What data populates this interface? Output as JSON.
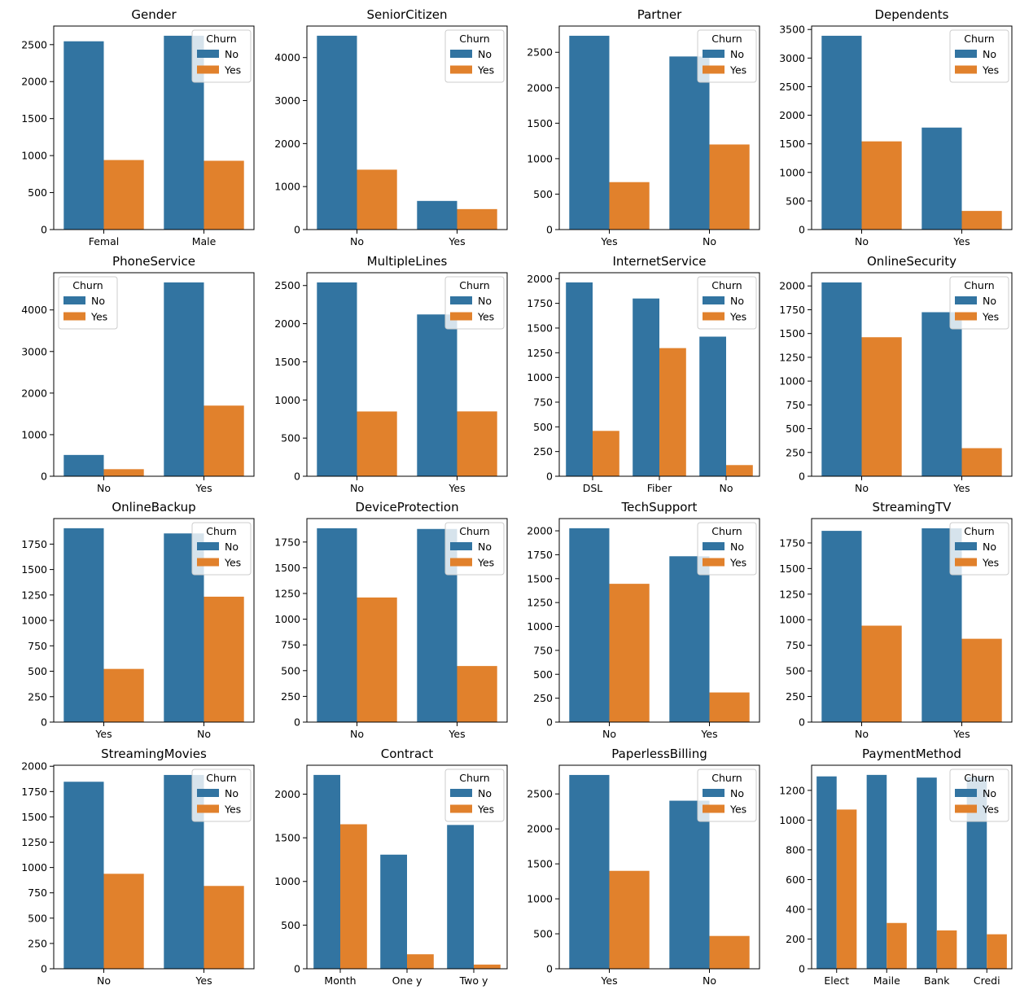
{
  "colors": {
    "No": "#3274a1",
    "Yes": "#e1812c"
  },
  "legend_title": "Churn",
  "chart_data": [
    {
      "type": "bar",
      "title": "Gender",
      "categories": [
        "Femal",
        "Male"
      ],
      "series": [
        {
          "name": "No",
          "values": [
            2545,
            2620
          ]
        },
        {
          "name": "Yes",
          "values": [
            940,
            930
          ]
        }
      ],
      "yticks": [
        0,
        500,
        1000,
        1500,
        2000,
        2500
      ],
      "ylim": [
        0,
        2751
      ],
      "legend": "upper-right"
    },
    {
      "type": "bar",
      "title": "SeniorCitizen",
      "categories": [
        "No",
        "Yes"
      ],
      "series": [
        {
          "name": "No",
          "values": [
            4508,
            666
          ]
        },
        {
          "name": "Yes",
          "values": [
            1393,
            476
          ]
        }
      ],
      "yticks": [
        0,
        1000,
        2000,
        3000,
        4000
      ],
      "ylim": [
        0,
        4733
      ],
      "legend": "upper-right"
    },
    {
      "type": "bar",
      "title": "Partner",
      "categories": [
        "Yes",
        "No"
      ],
      "series": [
        {
          "name": "No",
          "values": [
            2733,
            2441
          ]
        },
        {
          "name": "Yes",
          "values": [
            669,
            1200
          ]
        }
      ],
      "yticks": [
        0,
        500,
        1000,
        1500,
        2000,
        2500
      ],
      "ylim": [
        0,
        2870
      ],
      "legend": "upper-right"
    },
    {
      "type": "bar",
      "title": "Dependents",
      "categories": [
        "No",
        "Yes"
      ],
      "series": [
        {
          "name": "No",
          "values": [
            3390,
            1784
          ]
        },
        {
          "name": "Yes",
          "values": [
            1543,
            326
          ]
        }
      ],
      "yticks": [
        0,
        500,
        1000,
        1500,
        2000,
        2500,
        3000,
        3500
      ],
      "ylim": [
        0,
        3560
      ],
      "legend": "upper-right"
    },
    {
      "type": "bar",
      "title": "PhoneService",
      "categories": [
        "No",
        "Yes"
      ],
      "series": [
        {
          "name": "No",
          "values": [
            512,
            4662
          ]
        },
        {
          "name": "Yes",
          "values": [
            170,
            1699
          ]
        }
      ],
      "yticks": [
        0,
        1000,
        2000,
        3000,
        4000
      ],
      "ylim": [
        0,
        4895
      ],
      "legend": "upper-left"
    },
    {
      "type": "bar",
      "title": "MultipleLines",
      "categories": [
        "No",
        "Yes"
      ],
      "series": [
        {
          "name": "No",
          "values": [
            2541,
            2121
          ]
        },
        {
          "name": "Yes",
          "values": [
            849,
            850
          ]
        }
      ],
      "yticks": [
        0,
        500,
        1000,
        1500,
        2000,
        2500
      ],
      "ylim": [
        0,
        2668
      ],
      "legend": "upper-right"
    },
    {
      "type": "bar",
      "title": "InternetService",
      "categories": [
        "DSL",
        "Fiber",
        "No"
      ],
      "series": [
        {
          "name": "No",
          "values": [
            1962,
            1799,
            1413
          ]
        },
        {
          "name": "Yes",
          "values": [
            459,
            1297,
            113
          ]
        }
      ],
      "yticks": [
        0,
        250,
        500,
        750,
        1000,
        1250,
        1500,
        1750,
        2000
      ],
      "ylim": [
        0,
        2060
      ],
      "legend": "upper-right"
    },
    {
      "type": "bar",
      "title": "OnlineSecurity",
      "categories": [
        "No",
        "Yes"
      ],
      "series": [
        {
          "name": "No",
          "values": [
            2037,
            1724
          ]
        },
        {
          "name": "Yes",
          "values": [
            1461,
            295
          ]
        }
      ],
      "yticks": [
        0,
        250,
        500,
        750,
        1000,
        1250,
        1500,
        1750,
        2000
      ],
      "ylim": [
        0,
        2139
      ],
      "legend": "upper-right"
    },
    {
      "type": "bar",
      "title": "OnlineBackup",
      "categories": [
        "Yes",
        "No"
      ],
      "series": [
        {
          "name": "No",
          "values": [
            1906,
            1855
          ]
        },
        {
          "name": "Yes",
          "values": [
            523,
            1233
          ]
        }
      ],
      "yticks": [
        0,
        250,
        500,
        750,
        1000,
        1250,
        1500,
        1750
      ],
      "ylim": [
        0,
        2001
      ],
      "legend": "upper-right"
    },
    {
      "type": "bar",
      "title": "DeviceProtection",
      "categories": [
        "No",
        "Yes"
      ],
      "series": [
        {
          "name": "No",
          "values": [
            1884,
            1877
          ]
        },
        {
          "name": "Yes",
          "values": [
            1211,
            545
          ]
        }
      ],
      "yticks": [
        0,
        250,
        500,
        750,
        1000,
        1250,
        1500,
        1750
      ],
      "ylim": [
        0,
        1978
      ],
      "legend": "upper-right"
    },
    {
      "type": "bar",
      "title": "TechSupport",
      "categories": [
        "No",
        "Yes"
      ],
      "series": [
        {
          "name": "No",
          "values": [
            2027,
            1734
          ]
        },
        {
          "name": "Yes",
          "values": [
            1446,
            310
          ]
        }
      ],
      "yticks": [
        0,
        250,
        500,
        750,
        1000,
        1250,
        1500,
        1750,
        2000
      ],
      "ylim": [
        0,
        2128
      ],
      "legend": "upper-right"
    },
    {
      "type": "bar",
      "title": "StreamingTV",
      "categories": [
        "No",
        "Yes"
      ],
      "series": [
        {
          "name": "No",
          "values": [
            1868,
            1893
          ]
        },
        {
          "name": "Yes",
          "values": [
            942,
            814
          ]
        }
      ],
      "yticks": [
        0,
        250,
        500,
        750,
        1000,
        1250,
        1500,
        1750
      ],
      "ylim": [
        0,
        1988
      ],
      "legend": "upper-right"
    },
    {
      "type": "bar",
      "title": "StreamingMovies",
      "categories": [
        "No",
        "Yes"
      ],
      "series": [
        {
          "name": "No",
          "values": [
            1847,
            1914
          ]
        },
        {
          "name": "Yes",
          "values": [
            938,
            818
          ]
        }
      ],
      "yticks": [
        0,
        250,
        500,
        750,
        1000,
        1250,
        1500,
        1750,
        2000
      ],
      "ylim": [
        0,
        2010
      ],
      "legend": "upper-right"
    },
    {
      "type": "bar",
      "title": "Contract",
      "categories": [
        "Month",
        "One y",
        "Two y"
      ],
      "series": [
        {
          "name": "No",
          "values": [
            2220,
            1307,
            1647
          ]
        },
        {
          "name": "Yes",
          "values": [
            1655,
            166,
            48
          ]
        }
      ],
      "yticks": [
        0,
        500,
        1000,
        1500,
        2000
      ],
      "ylim": [
        0,
        2331
      ],
      "legend": "upper-right"
    },
    {
      "type": "bar",
      "title": "PaperlessBilling",
      "categories": [
        "Yes",
        "No"
      ],
      "series": [
        {
          "name": "No",
          "values": [
            2771,
            2403
          ]
        },
        {
          "name": "Yes",
          "values": [
            1400,
            469
          ]
        }
      ],
      "yticks": [
        0,
        500,
        1000,
        1500,
        2000,
        2500
      ],
      "ylim": [
        0,
        2910
      ],
      "legend": "upper-right"
    },
    {
      "type": "bar",
      "title": "PaymentMethod",
      "categories": [
        "Elect",
        "Maile",
        "Bank",
        "Credi"
      ],
      "series": [
        {
          "name": "No",
          "values": [
            1294,
            1304,
            1286,
            1290
          ]
        },
        {
          "name": "Yes",
          "values": [
            1071,
            308,
            258,
            232
          ]
        }
      ],
      "yticks": [
        0,
        200,
        400,
        600,
        800,
        1000,
        1200
      ],
      "ylim": [
        0,
        1369
      ],
      "legend": "upper-right"
    }
  ]
}
